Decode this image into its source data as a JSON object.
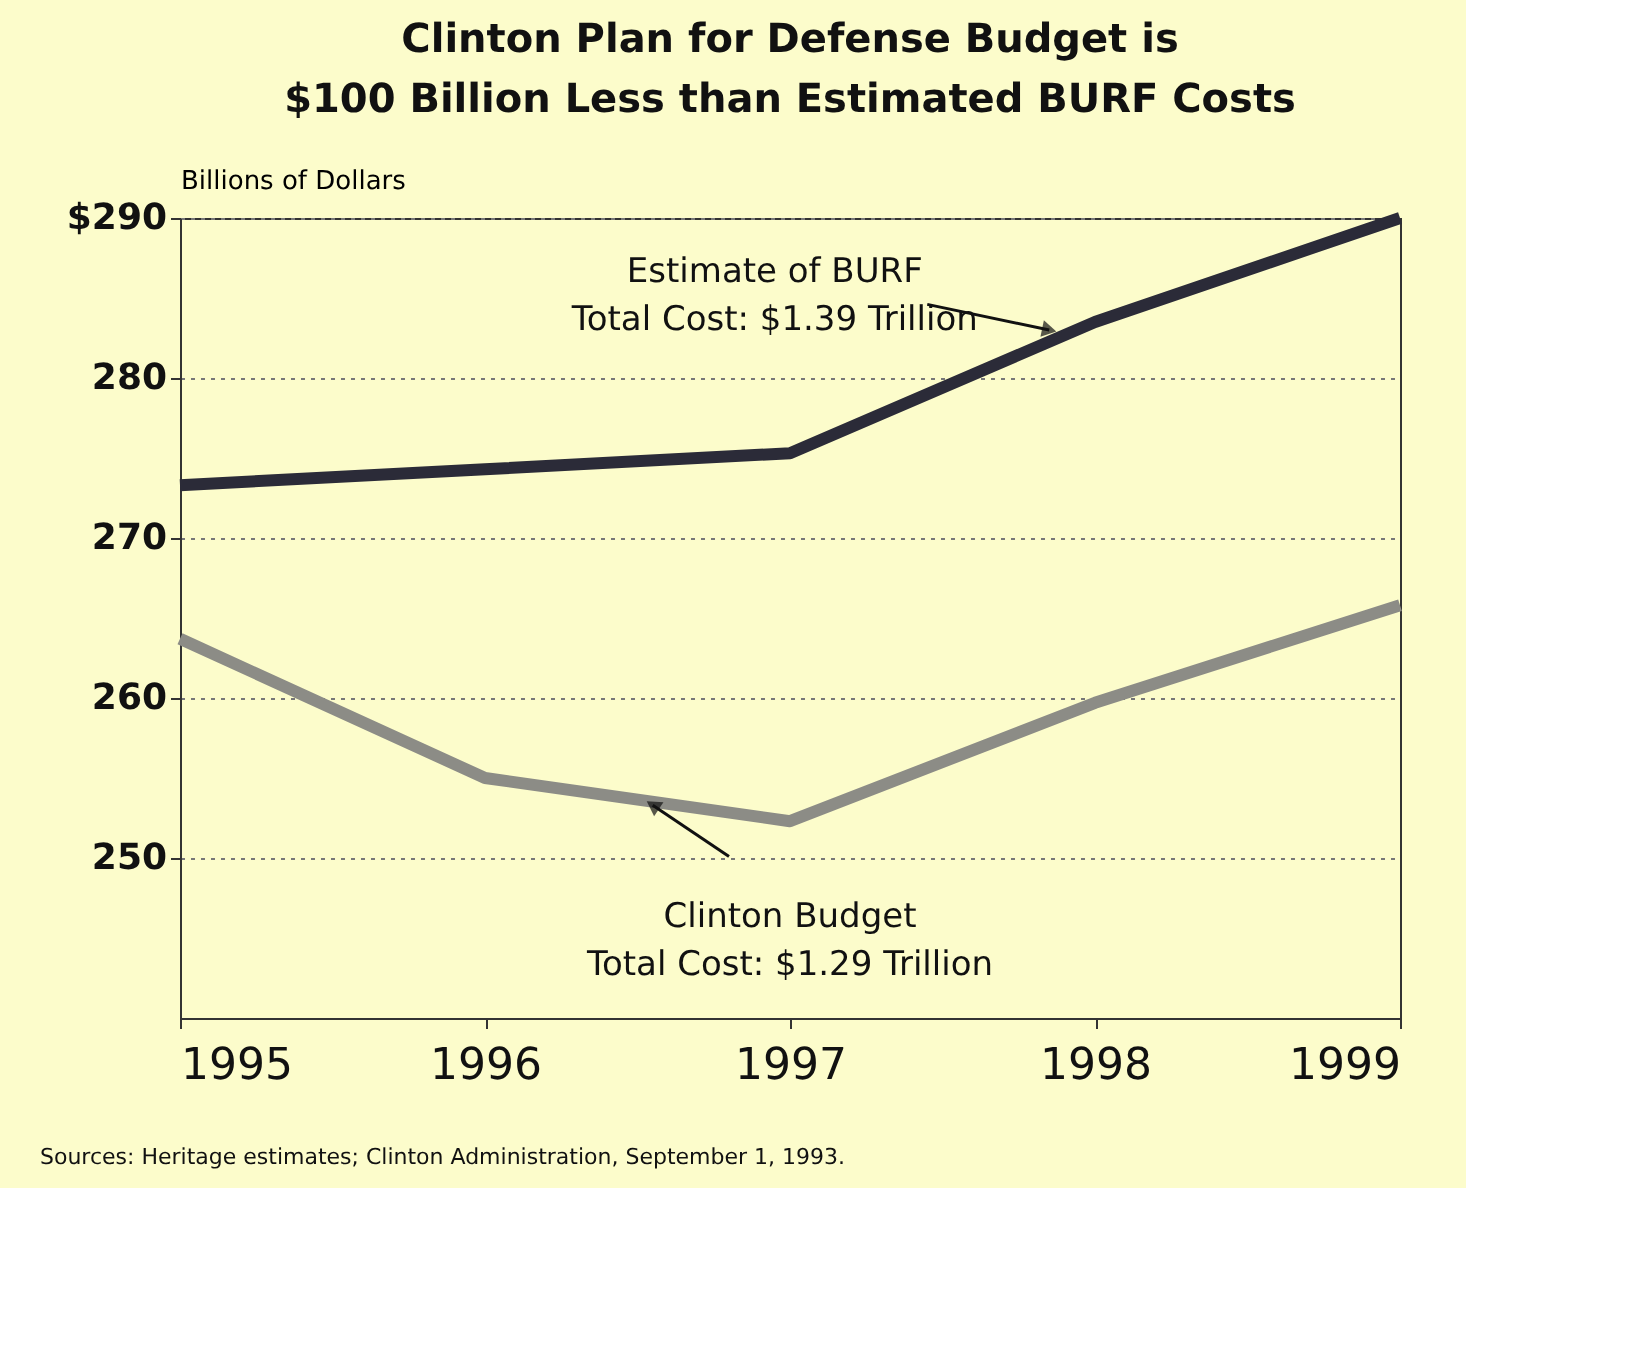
{
  "chart_data": {
    "type": "line",
    "title": "Clinton Plan for Defense Budget is\n$100 Billion Less than Estimated BURF Costs",
    "ylabel": "Billions of Dollars",
    "x": [
      1995,
      1996,
      1997,
      1998,
      1999
    ],
    "series": [
      {
        "color": "#2b2b38",
        "values": [
          273.3,
          274.3,
          275.3,
          283.5,
          290
        ]
      },
      {
        "color": "#8c8c86",
        "values": [
          263.7,
          255,
          252.3,
          259.7,
          265.8
        ]
      }
    ],
    "xlim": [
      1995,
      1999
    ],
    "xticks": [
      1995,
      1996,
      1997,
      1998,
      1999
    ],
    "ylim": [
      240,
      290
    ],
    "yticks": [
      250,
      260,
      270,
      280,
      {
        "value": 290,
        "label": "$290"
      }
    ],
    "grid": "y",
    "marker": "none",
    "line_style": "solid",
    "annotations": [
      {
        "text": "Estimate of BURF\nTotal Cost: $1.39 Trillion",
        "x": 1997.85,
        "y": 283
      },
      {
        "text": "Clinton Budget\nTotal Cost: $1.29 Trillion",
        "x": 1996.55,
        "y": 253.3
      },
      "Sources: Heritage estimates; Clinton Administration, September 1, 1993."
    ]
  }
}
